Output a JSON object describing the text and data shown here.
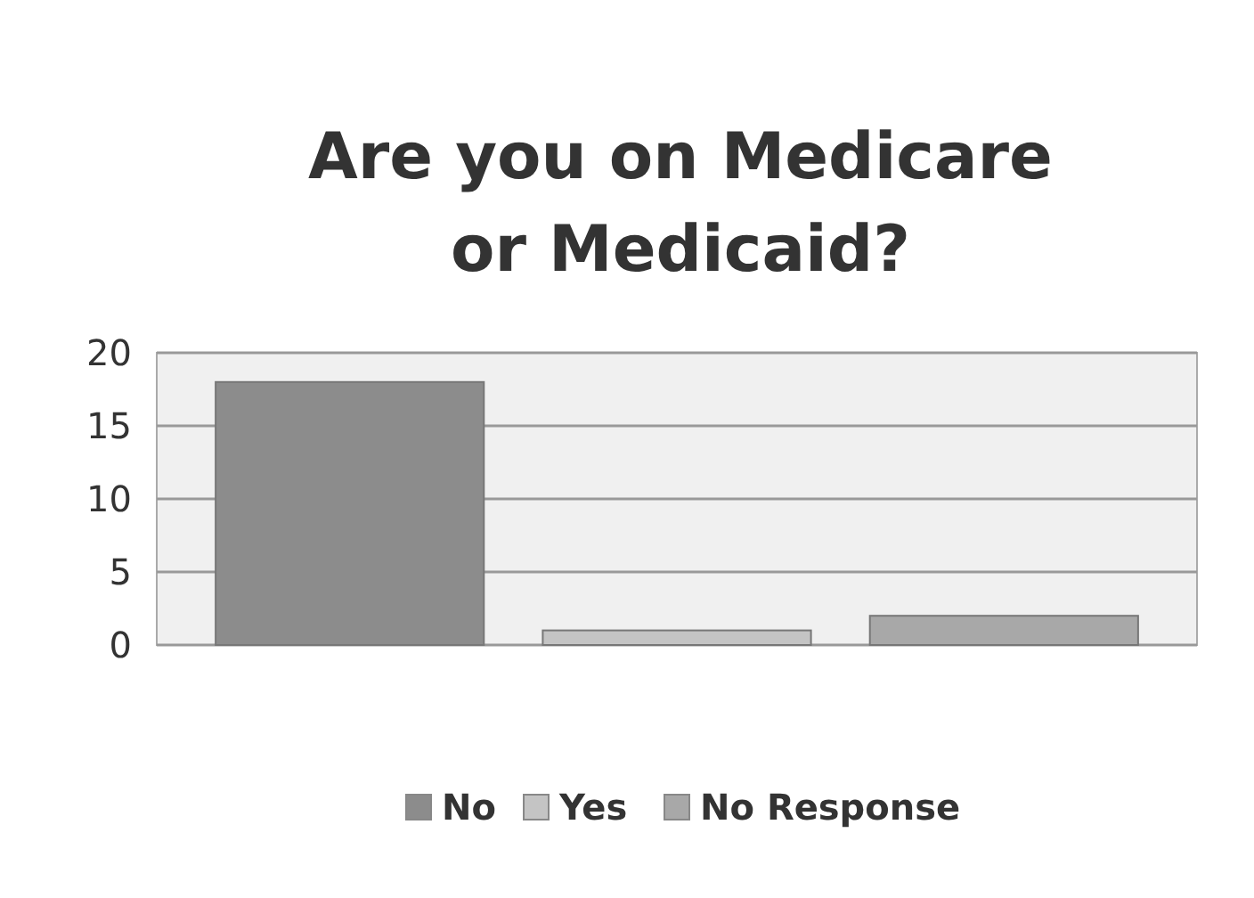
{
  "chart_data": {
    "type": "bar",
    "title": "Are you on Medicare or Medicaid?",
    "categories": [
      null,
      null,
      null
    ],
    "series": [
      {
        "name": "No",
        "color": "#8c8c8c",
        "values": [
          18,
          null,
          null
        ]
      },
      {
        "name": "Yes",
        "color": "#c4c4c4",
        "values": [
          null,
          1,
          null
        ]
      },
      {
        "name": "No Response",
        "color": "#a8a8a8",
        "values": [
          null,
          null,
          2
        ]
      }
    ],
    "ylim": [
      0,
      20
    ],
    "yticks": [
      0,
      5,
      10,
      15,
      20
    ],
    "grid": "y",
    "legend": "bottom"
  }
}
